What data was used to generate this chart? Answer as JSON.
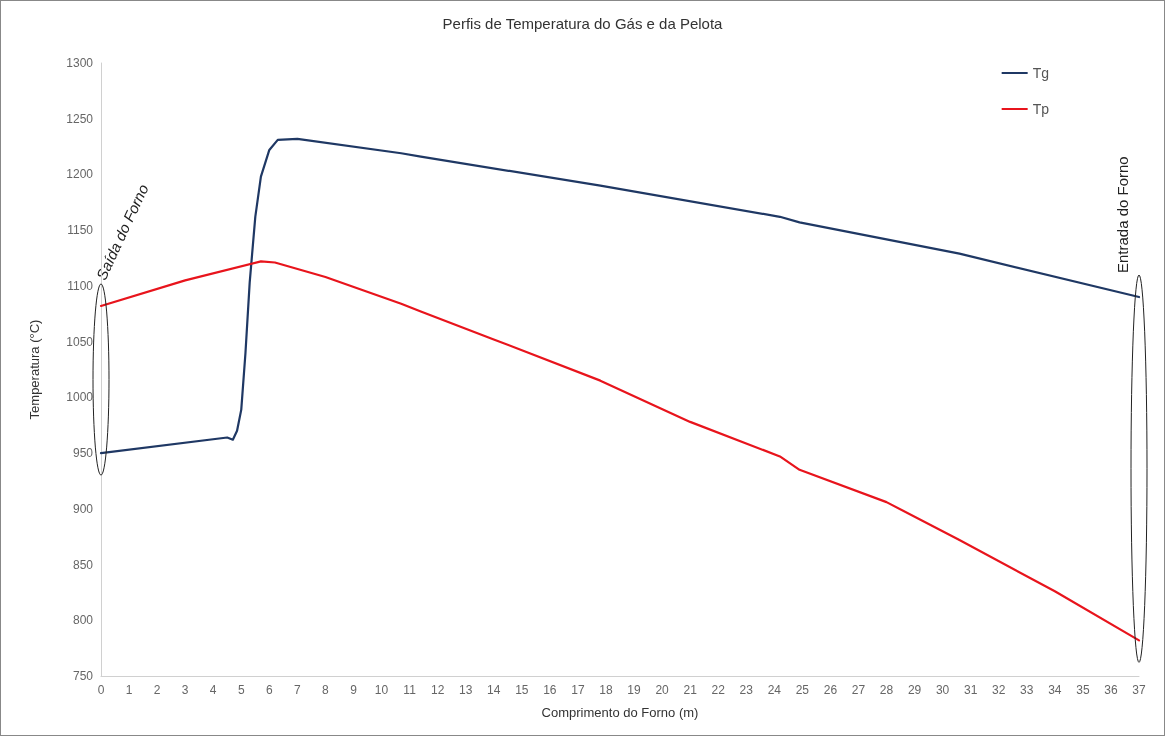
{
  "chart_data": {
    "type": "line",
    "title": "Perfis de Temperatura do Gás e da Pelota",
    "xlabel": "Comprimento do Forno (m)",
    "ylabel": "Temperatura (°C)",
    "xlim": [
      0,
      37
    ],
    "xticks": [
      0,
      1,
      2,
      3,
      4,
      5,
      6,
      7,
      8,
      9,
      10,
      11,
      12,
      13,
      14,
      15,
      16,
      17,
      18,
      19,
      20,
      21,
      22,
      23,
      24,
      25,
      26,
      27,
      28,
      29,
      30,
      31,
      32,
      33,
      34,
      35,
      36,
      37
    ],
    "ylim": [
      750,
      1300
    ],
    "yticks": [
      750,
      800,
      850,
      900,
      950,
      1000,
      1050,
      1100,
      1150,
      1200,
      1250,
      1300
    ],
    "grid": false,
    "legend": "top right",
    "marker": "none",
    "line_style": "solid",
    "series": [
      {
        "name": "Tg",
        "color": "#1f3864",
        "x": [
          0,
          4.5,
          4.7,
          4.85,
          5.0,
          5.15,
          5.3,
          5.5,
          5.7,
          6.0,
          6.3,
          7,
          10.7,
          11.4,
          17.8,
          24.2,
          24.9,
          30.6,
          37
        ],
        "values": [
          950,
          964,
          962,
          970,
          989,
          1040,
          1103,
          1162,
          1198,
          1222,
          1231,
          1232,
          1219,
          1216,
          1190,
          1162,
          1157,
          1129,
          1090
        ]
      },
      {
        "name": "Tp",
        "color": "#e8141c",
        "x": [
          0,
          3,
          5.7,
          6.2,
          8,
          10.7,
          11.4,
          14,
          17.8,
          21,
          24.2,
          24.9,
          28,
          30.6,
          34,
          37
        ],
        "values": [
          1082,
          1105,
          1122,
          1121,
          1108,
          1084,
          1077,
          1052,
          1015,
          978,
          947,
          935,
          906,
          872,
          826,
          782
        ]
      }
    ],
    "annotations": [
      "Saída do Forno",
      "Entrada do Forno"
    ]
  }
}
